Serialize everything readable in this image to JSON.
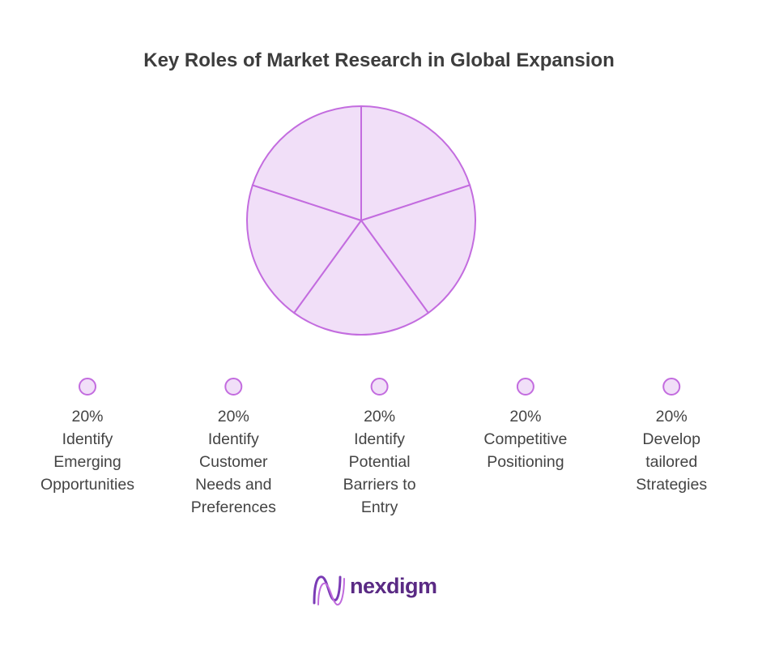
{
  "chart_data": {
    "type": "pie",
    "title": "Key Roles of Market Research in Global Expansion",
    "categories": [
      "Identify Emerging Opportunities",
      "Identify Customer Needs and Preferences",
      "Identify Potential Barriers to Entry",
      "Competitive Positioning",
      "Develop tailored Strategies"
    ],
    "values": [
      20,
      20,
      20,
      20,
      20
    ],
    "value_labels": [
      "20%",
      "20%",
      "20%",
      "20%",
      "20%"
    ],
    "color": "#f1dff8",
    "edge_color": "#c36cdf"
  },
  "footer": {
    "logo": "nexdigm"
  }
}
